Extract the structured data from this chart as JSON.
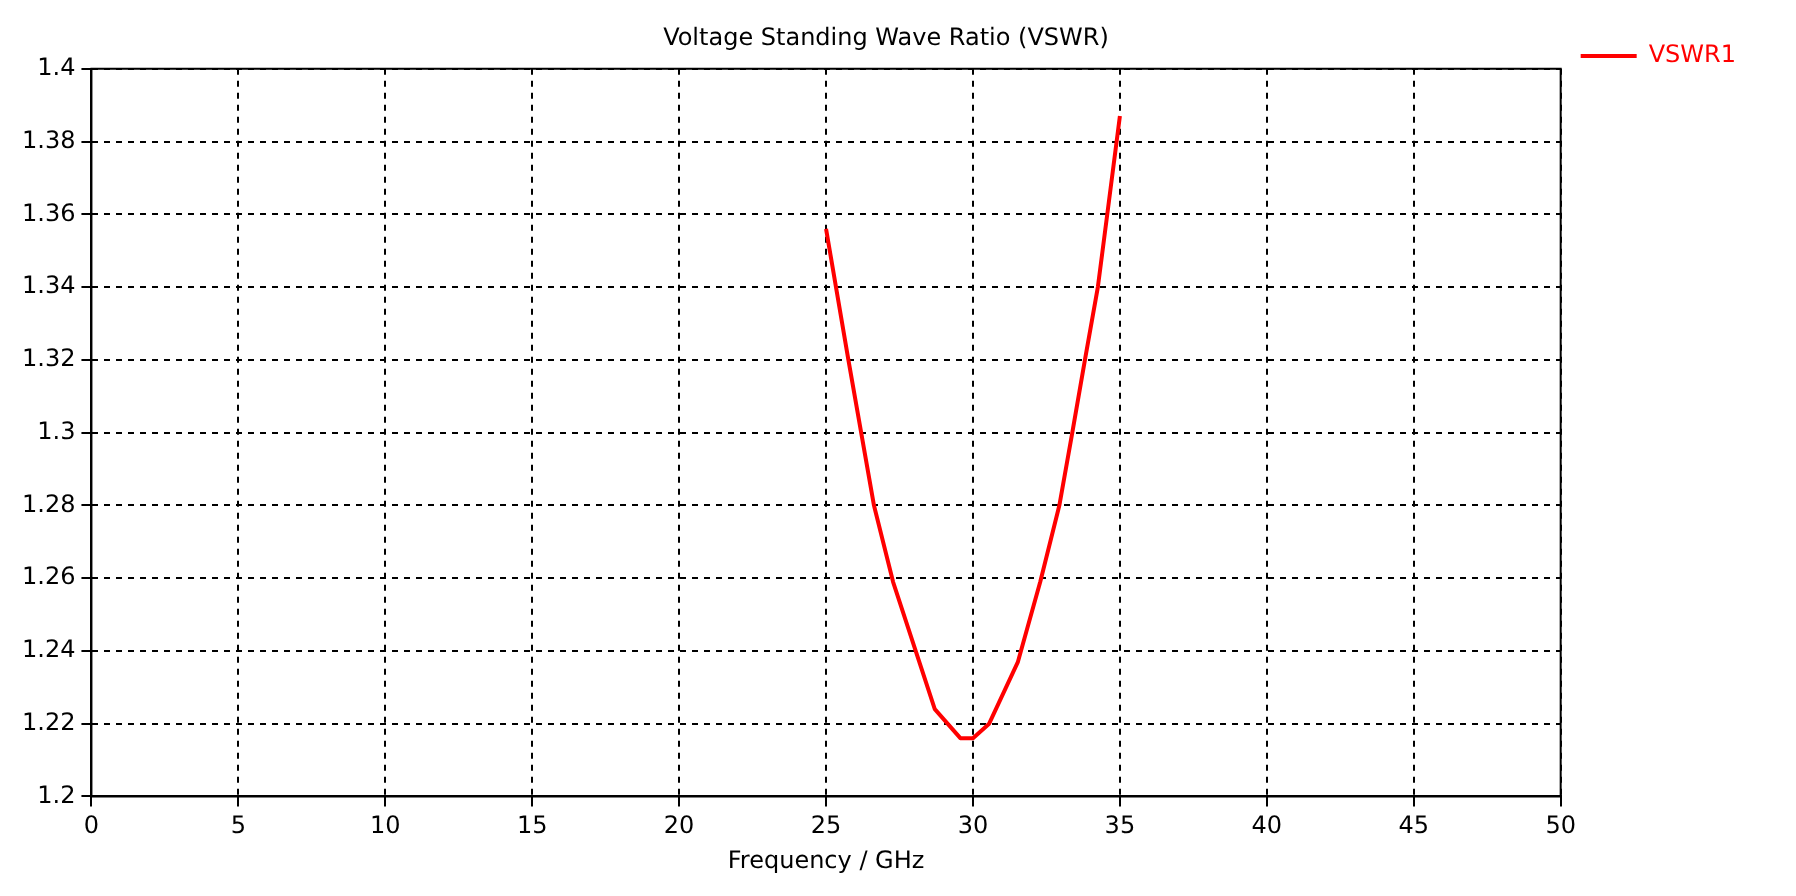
{
  "chart_data": {
    "type": "line",
    "title": "Voltage Standing Wave Ratio (VSWR)",
    "xlabel": "Frequency / GHz",
    "x": [
      25.0,
      25.76,
      26.63,
      27.28,
      28.05,
      28.7,
      29.57,
      30.0,
      30.55,
      31.53,
      32.29,
      32.94,
      33.38,
      33.81,
      34.25,
      34.57,
      35.0
    ],
    "series": [
      {
        "name": "VSWR1",
        "color": "#ff0000",
        "values": [
          1.356,
          1.32,
          1.28,
          1.259,
          1.24,
          1.224,
          1.216,
          1.216,
          1.22,
          1.237,
          1.259,
          1.28,
          1.3,
          1.32,
          1.34,
          1.36,
          1.387
        ]
      }
    ],
    "xlim": [
      0,
      50
    ],
    "xticks": [
      0,
      5,
      10,
      15,
      20,
      25,
      30,
      35,
      40,
      45,
      50
    ],
    "ylim": [
      1.2,
      1.4
    ],
    "yticks": [
      1.2,
      1.22,
      1.24,
      1.26,
      1.28,
      1.3,
      1.32,
      1.34,
      1.36,
      1.38,
      1.4
    ],
    "grid": true,
    "legend": "top right",
    "marker": "none",
    "line_style": "solid"
  }
}
